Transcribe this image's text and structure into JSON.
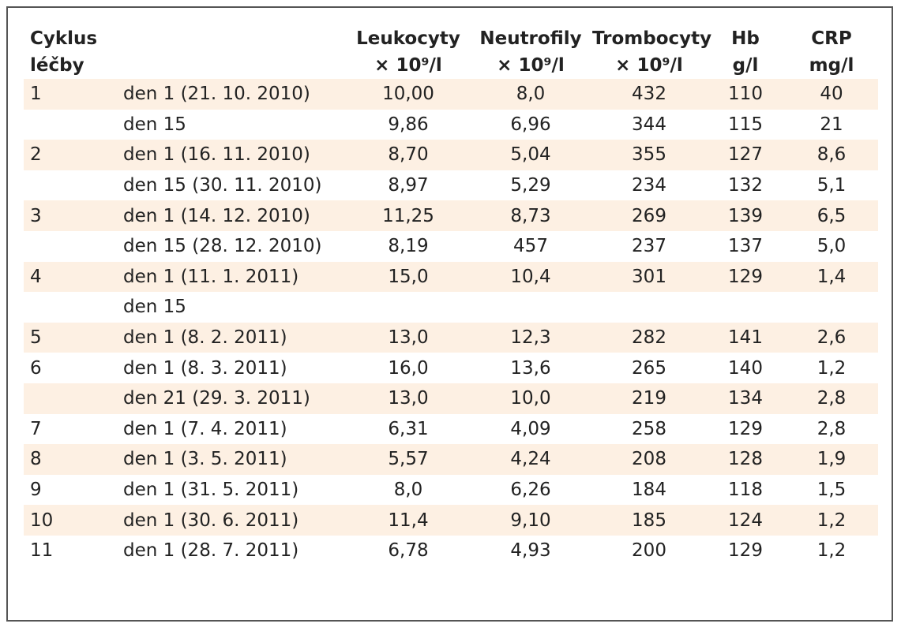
{
  "header": {
    "cycle": [
      "Cyklus",
      "léčby"
    ],
    "day": "",
    "leukocyty": [
      "Leukocyty",
      "× 10⁹/l"
    ],
    "neutrofily": [
      "Neutrofily",
      "× 10⁹/l"
    ],
    "trombocyty": [
      "Trombocyty",
      "× 10⁹/l"
    ],
    "hb": [
      "Hb",
      "g/l"
    ],
    "crp": [
      "CRP",
      "mg/l"
    ]
  },
  "colors": {
    "shade": "#fdf0e3",
    "border": "#555555"
  },
  "rows": [
    {
      "cycle": "1",
      "day": "den 1 (21. 10. 2010)",
      "leukocyty": "10,00",
      "neutrofily": "8,0",
      "trombocyty": "432",
      "hb": "110",
      "crp": "40",
      "shaded": true
    },
    {
      "cycle": "",
      "day": "den 15",
      "leukocyty": "9,86",
      "neutrofily": "6,96",
      "trombocyty": "344",
      "hb": "115",
      "crp": "21",
      "shaded": false
    },
    {
      "cycle": "2",
      "day": "den 1 (16. 11. 2010)",
      "leukocyty": "8,70",
      "neutrofily": "5,04",
      "trombocyty": "355",
      "hb": "127",
      "crp": "8,6",
      "shaded": true
    },
    {
      "cycle": "",
      "day": "den 15 (30. 11. 2010)",
      "leukocyty": "8,97",
      "neutrofily": "5,29",
      "trombocyty": "234",
      "hb": "132",
      "crp": "5,1",
      "shaded": false
    },
    {
      "cycle": "3",
      "day": "den 1 (14. 12. 2010)",
      "leukocyty": "11,25",
      "neutrofily": "8,73",
      "trombocyty": "269",
      "hb": "139",
      "crp": "6,5",
      "shaded": true
    },
    {
      "cycle": "",
      "day": "den 15 (28. 12. 2010)",
      "leukocyty": "8,19",
      "neutrofily": "457",
      "trombocyty": "237",
      "hb": "137",
      "crp": "5,0",
      "shaded": false
    },
    {
      "cycle": "4",
      "day": "den 1 (11. 1. 2011)",
      "leukocyty": "15,0",
      "neutrofily": "10,4",
      "trombocyty": "301",
      "hb": "129",
      "crp": "1,4",
      "shaded": true
    },
    {
      "cycle": "",
      "day": "den 15",
      "leukocyty": "",
      "neutrofily": "",
      "trombocyty": "",
      "hb": "",
      "crp": "",
      "shaded": false
    },
    {
      "cycle": "5",
      "day": "den 1 (8. 2. 2011)",
      "leukocyty": "13,0",
      "neutrofily": "12,3",
      "trombocyty": "282",
      "hb": "141",
      "crp": "2,6",
      "shaded": true
    },
    {
      "cycle": "6",
      "day": "den 1 (8. 3. 2011)",
      "leukocyty": "16,0",
      "neutrofily": "13,6",
      "trombocyty": "265",
      "hb": "140",
      "crp": "1,2",
      "shaded": false
    },
    {
      "cycle": "",
      "day": "den 21 (29. 3. 2011)",
      "leukocyty": "13,0",
      "neutrofily": "10,0",
      "trombocyty": "219",
      "hb": "134",
      "crp": "2,8",
      "shaded": true
    },
    {
      "cycle": "7",
      "day": "den 1 (7. 4. 2011)",
      "leukocyty": "6,31",
      "neutrofily": "4,09",
      "trombocyty": "258",
      "hb": "129",
      "crp": "2,8",
      "shaded": false
    },
    {
      "cycle": "8",
      "day": "den 1 (3. 5. 2011)",
      "leukocyty": "5,57",
      "neutrofily": "4,24",
      "trombocyty": "208",
      "hb": "128",
      "crp": "1,9",
      "shaded": true
    },
    {
      "cycle": "9",
      "day": "den 1 (31. 5. 2011)",
      "leukocyty": "8,0",
      "neutrofily": "6,26",
      "trombocyty": "184",
      "hb": "118",
      "crp": "1,5",
      "shaded": false
    },
    {
      "cycle": "10",
      "day": "den 1 (30. 6. 2011)",
      "leukocyty": "11,4",
      "neutrofily": "9,10",
      "trombocyty": "185",
      "hb": "124",
      "crp": "1,2",
      "shaded": true
    },
    {
      "cycle": "11",
      "day": "den 1 (28. 7. 2011)",
      "leukocyty": "6,78",
      "neutrofily": "4,93",
      "trombocyty": "200",
      "hb": "129",
      "crp": "1,2",
      "shaded": false
    }
  ]
}
